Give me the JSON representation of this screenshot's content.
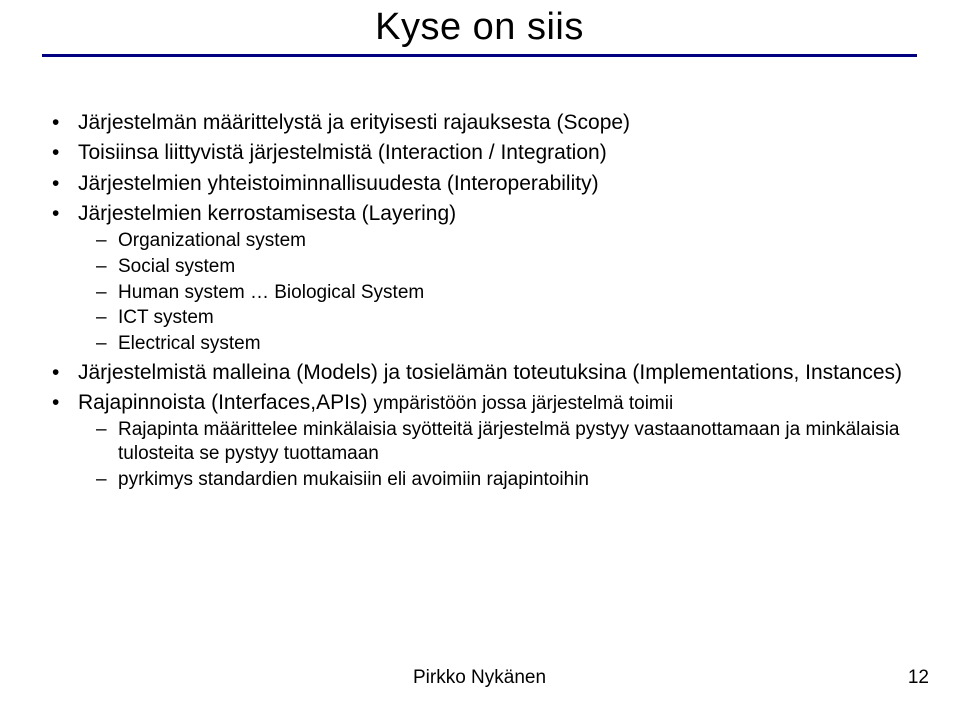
{
  "title": "Kyse on siis",
  "colors": {
    "underline": "#000080",
    "text": "#000000",
    "background": "#ffffff"
  },
  "bullets": [
    {
      "text": "Järjestelmän määrittelystä ja erityisesti rajauksesta (Scope)"
    },
    {
      "text": "Toisiinsa liittyvistä järjestelmistä (Interaction / Integration)"
    },
    {
      "text": "Järjestelmien yhteistoiminnallisuudesta (Interoperability)"
    },
    {
      "text": "Järjestelmien kerrostamisesta (Layering)",
      "sub": [
        "Organizational system",
        "Social system",
        "Human system … Biological System",
        "ICT system",
        "Electrical system"
      ]
    },
    {
      "text": "Järjestelmistä malleina (Models) ja tosielämän toteutuksina (Implementations, Instances)"
    },
    {
      "text_prefix": "Rajapinnoista (Interfaces,APIs) ",
      "text_suffix_small": "ympäristöön jossa järjestelmä toimii",
      "sub": [
        "Rajapinta määrittelee minkälaisia syötteitä järjestelmä pystyy vastaanottamaan ja minkälaisia tulosteita se pystyy tuottamaan",
        "pyrkimys standardien mukaisiin eli avoimiin rajapintoihin"
      ]
    }
  ],
  "footer": "Pirkko Nykänen",
  "page_number": "12"
}
